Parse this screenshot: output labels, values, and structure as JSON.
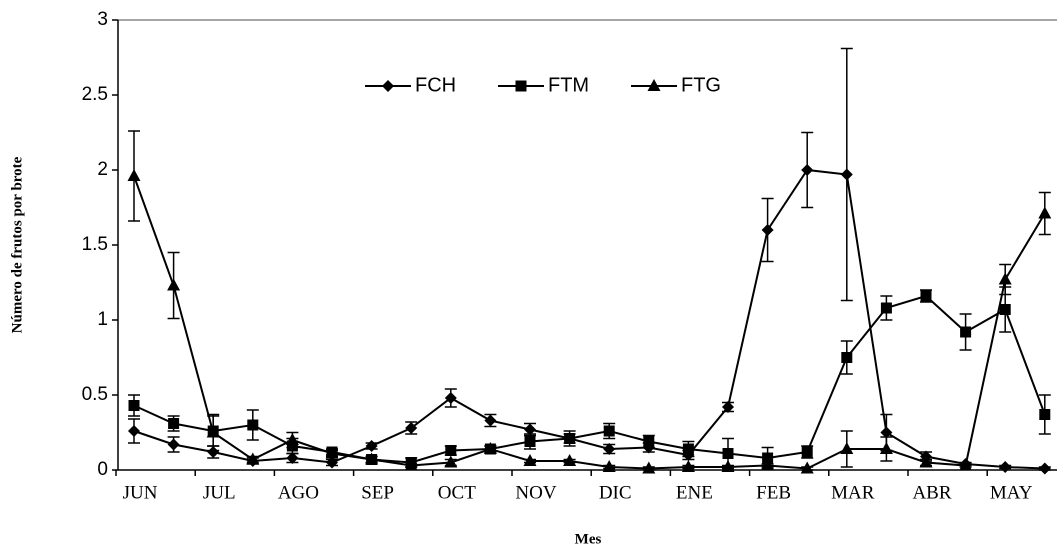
{
  "chart_data": {
    "type": "line",
    "y_label": "Número de frutos por brote",
    "x_label": "Mes",
    "categories": [
      "JUN",
      null,
      "JUL",
      null,
      "AGO",
      null,
      "SEP",
      null,
      "OCT",
      null,
      "NOV",
      null,
      "DIC",
      null,
      "ENE",
      null,
      "FEB",
      null,
      "MAR",
      null,
      "ABR",
      null,
      "MAY",
      null
    ],
    "series": [
      {
        "name": "FCH",
        "marker": "diamond",
        "color": "#000000",
        "values": [
          0.26,
          0.17,
          0.12,
          0.06,
          0.08,
          0.05,
          0.16,
          0.28,
          0.48,
          0.33,
          0.27,
          0.21,
          0.14,
          0.15,
          0.1,
          0.42,
          1.6,
          2.0,
          1.97,
          0.25,
          0.09,
          0.04,
          0.02,
          0.01
        ],
        "errors": [
          0.08,
          0.05,
          0.04,
          0.02,
          0.03,
          0.02,
          0.02,
          0.04,
          0.06,
          0.04,
          0.04,
          0.03,
          0.03,
          0.03,
          0.03,
          0.03,
          0.21,
          0.25,
          0.84,
          0.12,
          0.03,
          0.01,
          0.01,
          0.01
        ]
      },
      {
        "name": "FTM",
        "marker": "square",
        "color": "#000000",
        "values": [
          0.43,
          0.31,
          0.26,
          0.3,
          0.16,
          0.12,
          0.07,
          0.05,
          0.13,
          0.14,
          0.19,
          0.21,
          0.26,
          0.19,
          0.14,
          0.11,
          0.08,
          0.12,
          0.75,
          1.08,
          1.16,
          0.92,
          1.07,
          0.37
        ],
        "errors": [
          0.07,
          0.05,
          0.1,
          0.1,
          0.05,
          0.02,
          0.02,
          0.03,
          0.03,
          0.02,
          0.05,
          0.05,
          0.05,
          0.04,
          0.05,
          0.1,
          0.07,
          0.04,
          0.11,
          0.08,
          0.04,
          0.12,
          0.15,
          0.13
        ]
      },
      {
        "name": "FTG",
        "marker": "triangle",
        "color": "#000000",
        "values": [
          1.96,
          1.23,
          0.25,
          0.07,
          0.2,
          0.11,
          0.07,
          0.03,
          0.05,
          0.14,
          0.06,
          0.06,
          0.02,
          0.01,
          0.02,
          0.02,
          0.03,
          0.01,
          0.14,
          0.14,
          0.05,
          0.03,
          1.27,
          1.71
        ],
        "errors": [
          0.3,
          0.22,
          0.12,
          0.02,
          0.05,
          0.02,
          0.02,
          0.01,
          0.02,
          0.02,
          0.01,
          0.01,
          0.01,
          0.01,
          0.01,
          0.01,
          0.01,
          0.01,
          0.12,
          0.08,
          0.02,
          0.01,
          0.1,
          0.14
        ]
      }
    ],
    "ylim": [
      0,
      3
    ],
    "yticks": [
      0,
      0.5,
      1,
      1.5,
      2,
      2.5,
      3
    ],
    "legend": "top"
  }
}
